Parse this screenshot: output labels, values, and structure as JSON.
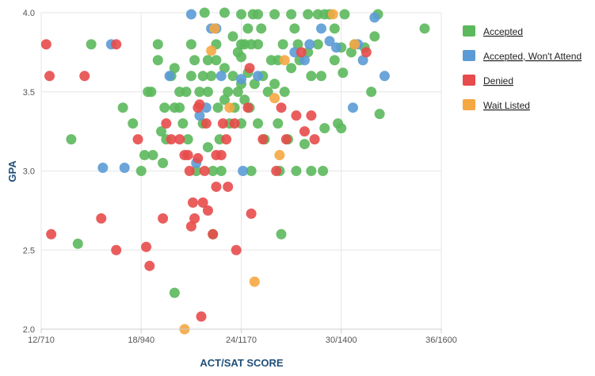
{
  "chart_data": {
    "type": "scatter",
    "title": "",
    "xlabel": "ACT/SAT SCORE",
    "ylabel": "GPA",
    "x_ticks": [
      {
        "value": 12,
        "label": "12/710"
      },
      {
        "value": 18,
        "label": "18/940"
      },
      {
        "value": 24,
        "label": "24/1170"
      },
      {
        "value": 30,
        "label": "30/1400"
      },
      {
        "value": 36,
        "label": "36/1600"
      }
    ],
    "y_ticks": [
      {
        "value": 2.0,
        "label": "2.0"
      },
      {
        "value": 2.5,
        "label": "2.5"
      },
      {
        "value": 3.0,
        "label": "3.0"
      },
      {
        "value": 3.5,
        "label": "3.5"
      },
      {
        "value": 4.0,
        "label": "4.0"
      }
    ],
    "xlim": [
      12,
      36
    ],
    "ylim": [
      2.0,
      4.0
    ],
    "grid": true,
    "legend_position": "right",
    "series": [
      {
        "name": "Accepted",
        "color": "#5cb85c",
        "points": [
          [
            13.8,
            3.2
          ],
          [
            14.2,
            2.54
          ],
          [
            15.0,
            3.8
          ],
          [
            16.9,
            3.4
          ],
          [
            17.5,
            3.3
          ],
          [
            18.0,
            3.0
          ],
          [
            18.2,
            3.1
          ],
          [
            18.4,
            3.5
          ],
          [
            18.6,
            3.5
          ],
          [
            18.7,
            3.1
          ],
          [
            19.0,
            3.8
          ],
          [
            19.0,
            3.7
          ],
          [
            19.2,
            3.25
          ],
          [
            19.4,
            3.4
          ],
          [
            19.5,
            3.2
          ],
          [
            19.8,
            3.6
          ],
          [
            20.0,
            3.65
          ],
          [
            20.0,
            3.4
          ],
          [
            20.0,
            2.23
          ],
          [
            20.3,
            3.5
          ],
          [
            20.3,
            3.4
          ],
          [
            20.5,
            3.3
          ],
          [
            20.7,
            3.5
          ],
          [
            20.8,
            3.2
          ],
          [
            21.0,
            3.8
          ],
          [
            21.0,
            3.6
          ],
          [
            21.2,
            3.7
          ],
          [
            21.3,
            3.0
          ],
          [
            21.5,
            3.5
          ],
          [
            21.7,
            3.3
          ],
          [
            21.8,
            4.0
          ],
          [
            22.0,
            3.7
          ],
          [
            22.0,
            3.5
          ],
          [
            22.0,
            3.15
          ],
          [
            22.2,
            3.6
          ],
          [
            22.3,
            3.0
          ],
          [
            22.3,
            2.6
          ],
          [
            22.5,
            3.8
          ],
          [
            22.5,
            3.7
          ],
          [
            22.6,
            3.4
          ],
          [
            22.7,
            3.2
          ],
          [
            22.8,
            3.0
          ],
          [
            23.0,
            4.0
          ],
          [
            23.0,
            3.65
          ],
          [
            23.0,
            3.45
          ],
          [
            23.2,
            3.5
          ],
          [
            23.3,
            3.3
          ],
          [
            23.5,
            3.85
          ],
          [
            23.5,
            3.6
          ],
          [
            23.6,
            3.4
          ],
          [
            23.8,
            3.75
          ],
          [
            23.8,
            3.5
          ],
          [
            24.0,
            3.99
          ],
          [
            24.0,
            3.72
          ],
          [
            24.0,
            3.55
          ],
          [
            24.0,
            3.3
          ],
          [
            24.2,
            3.8
          ],
          [
            24.2,
            3.45
          ],
          [
            24.4,
            3.62
          ],
          [
            24.5,
            3.4
          ],
          [
            24.6,
            3.0
          ],
          [
            24.7,
            3.99
          ],
          [
            24.8,
            3.55
          ],
          [
            25.0,
            3.8
          ],
          [
            25.0,
            3.3
          ],
          [
            25.2,
            3.9
          ],
          [
            25.3,
            3.6
          ],
          [
            25.4,
            3.2
          ],
          [
            25.6,
            3.5
          ],
          [
            25.8,
            3.7
          ],
          [
            26.0,
            3.99
          ],
          [
            26.0,
            3.55
          ],
          [
            26.2,
            3.3
          ],
          [
            26.3,
            3.0
          ],
          [
            26.4,
            2.6
          ],
          [
            26.5,
            3.8
          ],
          [
            26.6,
            3.5
          ],
          [
            26.8,
            3.2
          ],
          [
            27.0,
            3.99
          ],
          [
            27.0,
            3.65
          ],
          [
            27.2,
            3.9
          ],
          [
            27.3,
            3.0
          ],
          [
            27.5,
            3.7
          ],
          [
            27.8,
            3.17
          ],
          [
            28.0,
            3.99
          ],
          [
            28.0,
            3.75
          ],
          [
            28.2,
            3.6
          ],
          [
            28.2,
            3.0
          ],
          [
            28.6,
            3.99
          ],
          [
            28.6,
            3.8
          ],
          [
            28.8,
            3.6
          ],
          [
            28.9,
            3.0
          ],
          [
            29.0,
            3.99
          ],
          [
            29.0,
            3.27
          ],
          [
            29.3,
            3.99
          ],
          [
            29.6,
            3.9
          ],
          [
            29.6,
            3.7
          ],
          [
            29.8,
            3.3
          ],
          [
            30.0,
            3.78
          ],
          [
            30.1,
            3.62
          ],
          [
            30.2,
            3.99
          ],
          [
            30.6,
            3.75
          ],
          [
            30.8,
            3.8
          ],
          [
            31.4,
            3.78
          ],
          [
            31.8,
            3.5
          ],
          [
            32.0,
            3.85
          ],
          [
            32.3,
            3.36
          ],
          [
            35.0,
            3.9
          ],
          [
            32.2,
            3.99
          ],
          [
            19.3,
            3.05
          ],
          [
            24.6,
            3.8
          ],
          [
            25.0,
            3.99
          ],
          [
            24.4,
            3.9
          ],
          [
            21.7,
            3.6
          ],
          [
            26.2,
            3.7
          ],
          [
            27.4,
            3.8
          ],
          [
            30.0,
            3.27
          ],
          [
            24.0,
            3.8
          ]
        ]
      },
      {
        "name": "Accepted, Won't Attend",
        "color": "#5b9bd5",
        "points": [
          [
            15.7,
            3.02
          ],
          [
            16.2,
            3.8
          ],
          [
            17.0,
            3.02
          ],
          [
            19.7,
            3.6
          ],
          [
            21.0,
            3.99
          ],
          [
            21.3,
            3.05
          ],
          [
            21.5,
            3.35
          ],
          [
            21.9,
            3.4
          ],
          [
            22.2,
            3.9
          ],
          [
            22.8,
            3.6
          ],
          [
            24.0,
            3.58
          ],
          [
            24.1,
            3.0
          ],
          [
            25.0,
            3.6
          ],
          [
            27.8,
            3.7
          ],
          [
            28.1,
            3.8
          ],
          [
            28.8,
            3.9
          ],
          [
            29.3,
            3.82
          ],
          [
            29.7,
            3.78
          ],
          [
            30.7,
            3.4
          ],
          [
            31.0,
            3.8
          ],
          [
            31.3,
            3.7
          ],
          [
            32.0,
            3.97
          ],
          [
            32.6,
            3.6
          ],
          [
            22.5,
            3.9
          ],
          [
            27.2,
            3.75
          ]
        ]
      },
      {
        "name": "Denied",
        "color": "#e84b4b",
        "points": [
          [
            12.3,
            3.8
          ],
          [
            12.5,
            3.6
          ],
          [
            12.6,
            2.6
          ],
          [
            14.6,
            3.6
          ],
          [
            15.6,
            2.7
          ],
          [
            16.5,
            2.5
          ],
          [
            16.5,
            3.8
          ],
          [
            17.8,
            3.2
          ],
          [
            18.3,
            2.52
          ],
          [
            18.5,
            2.4
          ],
          [
            19.3,
            2.7
          ],
          [
            19.8,
            3.2
          ],
          [
            20.3,
            3.2
          ],
          [
            20.6,
            3.1
          ],
          [
            20.8,
            3.1
          ],
          [
            20.9,
            3.0
          ],
          [
            21.0,
            2.65
          ],
          [
            21.1,
            2.8
          ],
          [
            21.2,
            2.7
          ],
          [
            21.4,
            3.08
          ],
          [
            21.4,
            3.4
          ],
          [
            21.6,
            2.08
          ],
          [
            21.7,
            2.8
          ],
          [
            21.8,
            3.0
          ],
          [
            21.9,
            3.3
          ],
          [
            22.0,
            2.75
          ],
          [
            22.3,
            2.6
          ],
          [
            22.5,
            2.9
          ],
          [
            22.5,
            3.1
          ],
          [
            22.8,
            3.1
          ],
          [
            22.9,
            3.3
          ],
          [
            23.1,
            3.2
          ],
          [
            23.2,
            2.9
          ],
          [
            23.6,
            3.3
          ],
          [
            23.7,
            2.5
          ],
          [
            24.4,
            3.4
          ],
          [
            24.5,
            3.65
          ],
          [
            24.6,
            2.73
          ],
          [
            25.3,
            3.2
          ],
          [
            26.1,
            3.0
          ],
          [
            26.4,
            3.4
          ],
          [
            26.7,
            3.2
          ],
          [
            27.3,
            3.35
          ],
          [
            27.6,
            3.75
          ],
          [
            27.8,
            3.25
          ],
          [
            28.2,
            3.35
          ],
          [
            28.4,
            3.2
          ],
          [
            31.5,
            3.75
          ],
          [
            19.5,
            3.3
          ],
          [
            21.5,
            3.42
          ]
        ]
      },
      {
        "name": "Wait Listed",
        "color": "#f5a742",
        "points": [
          [
            20.6,
            2.0
          ],
          [
            22.2,
            3.76
          ],
          [
            23.3,
            3.4
          ],
          [
            24.8,
            2.3
          ],
          [
            26.0,
            3.46
          ],
          [
            26.3,
            3.1
          ],
          [
            26.6,
            3.7
          ],
          [
            29.5,
            3.99
          ],
          [
            30.8,
            3.8
          ],
          [
            22.4,
            3.9
          ]
        ]
      }
    ]
  }
}
